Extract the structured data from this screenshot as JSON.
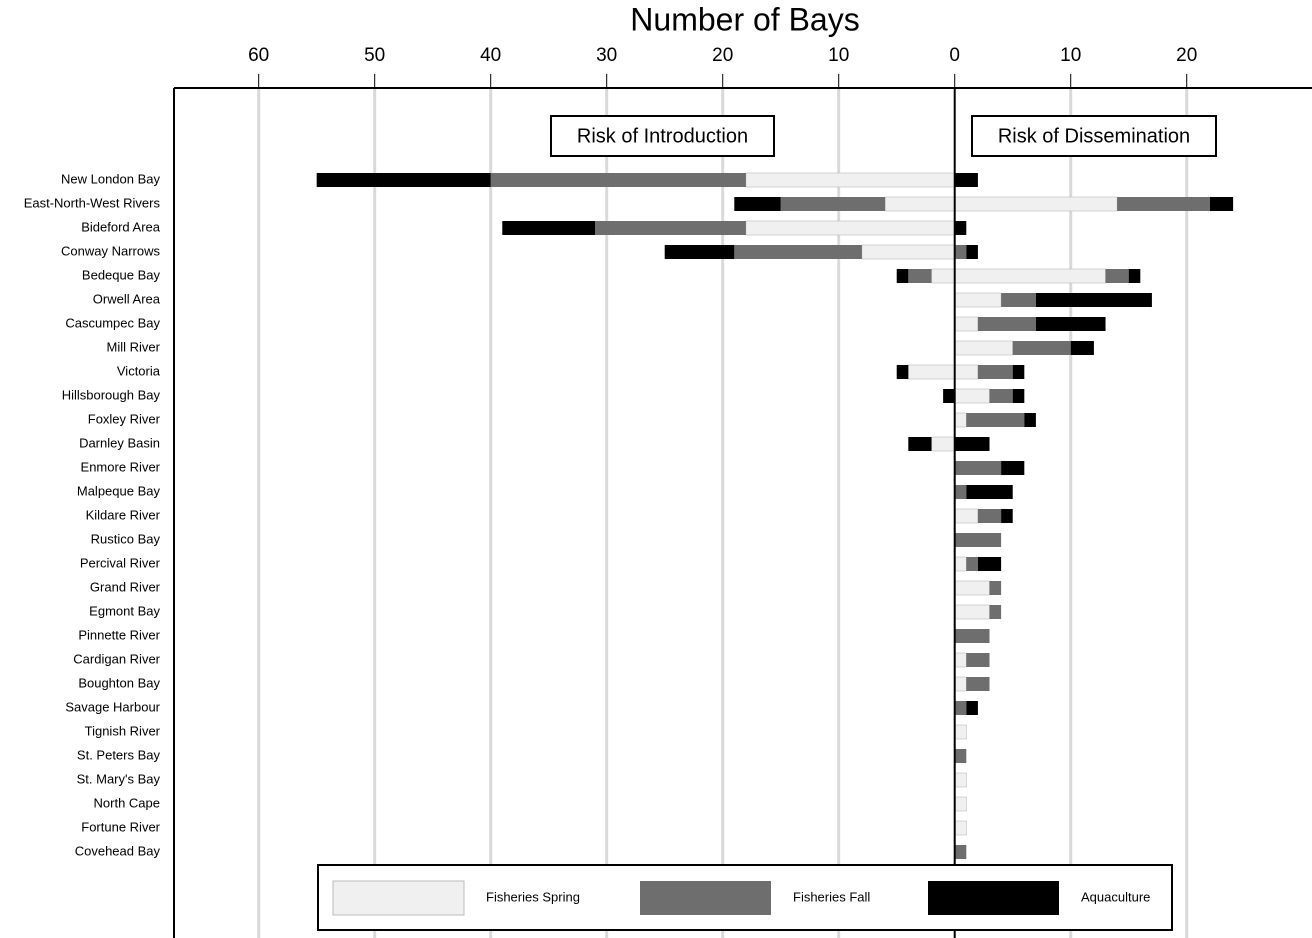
{
  "chart_data": {
    "type": "diverging-stacked-bar",
    "title": "Number of Bays",
    "annotations": [
      "Risk of Introduction",
      "Risk of Dissemination"
    ],
    "categories": [
      "New London Bay",
      "East-North-West Rivers",
      "Bideford Area",
      "Conway Narrows",
      "Bedeque Bay",
      "Orwell Area",
      "Cascumpec Bay",
      "Mill River",
      "Victoria",
      "Hillsborough Bay",
      "Foxley River",
      "Darnley Basin",
      "Enmore River",
      "Malpeque Bay",
      "Kildare River",
      "Rustico Bay",
      "Percival River",
      "Grand River",
      "Egmont Bay",
      "Pinnette River",
      "Cardigan River",
      "Boughton Bay",
      "Savage Harbour",
      "Tignish River",
      "St. Peters Bay",
      "St. Mary's Bay",
      "North Cape",
      "Fortune River",
      "Covehead Bay"
    ],
    "series": [
      {
        "name": "Fisheries Spring",
        "color": "#f0f0f0",
        "introduction": [
          -18,
          -6,
          -18,
          -8,
          -2,
          0,
          0,
          0,
          -4,
          0,
          0,
          -2,
          0,
          0,
          0,
          0,
          0,
          0,
          0,
          0,
          0,
          0,
          0,
          0,
          0,
          0,
          0,
          0,
          0
        ],
        "dissemination": [
          0,
          14,
          0,
          0,
          13,
          4,
          2,
          5,
          2,
          3,
          1,
          0,
          0,
          0,
          2,
          0,
          1,
          3,
          3,
          0,
          1,
          1,
          0,
          1,
          0,
          1,
          1,
          1,
          0
        ]
      },
      {
        "name": "Fisheries Fall",
        "color": "#6e6e6e",
        "introduction": [
          -22,
          -9,
          -13,
          -11,
          -2,
          0,
          0,
          0,
          0,
          0,
          0,
          0,
          0,
          0,
          0,
          0,
          0,
          0,
          0,
          0,
          0,
          0,
          0,
          0,
          0,
          0,
          0,
          0,
          0
        ],
        "dissemination": [
          0,
          8,
          0,
          1,
          2,
          3,
          5,
          5,
          3,
          2,
          5,
          0,
          4,
          1,
          2,
          4,
          1,
          1,
          1,
          3,
          2,
          2,
          1,
          0,
          1,
          0,
          0,
          0,
          1
        ]
      },
      {
        "name": "Aquaculture",
        "color": "#000000",
        "introduction": [
          -15,
          -4,
          -8,
          -6,
          -1,
          0,
          0,
          0,
          -1,
          -1,
          0,
          -2,
          0,
          0,
          0,
          0,
          0,
          0,
          0,
          0,
          0,
          0,
          0,
          0,
          0,
          0,
          0,
          0,
          0
        ],
        "dissemination": [
          2,
          2,
          1,
          1,
          1,
          10,
          6,
          2,
          1,
          1,
          1,
          3,
          2,
          4,
          1,
          0,
          2,
          0,
          0,
          0,
          0,
          0,
          1,
          0,
          0,
          0,
          0,
          0,
          0
        ]
      }
    ],
    "xlim": [
      -67.3,
      30.8
    ],
    "xticks": [
      {
        "value": -60,
        "label": "60"
      },
      {
        "value": -50,
        "label": "50"
      },
      {
        "value": -40,
        "label": "40"
      },
      {
        "value": -30,
        "label": "30"
      },
      {
        "value": -20,
        "label": "20"
      },
      {
        "value": -10,
        "label": "10"
      },
      0,
      10,
      20
    ],
    "grid": true
  }
}
